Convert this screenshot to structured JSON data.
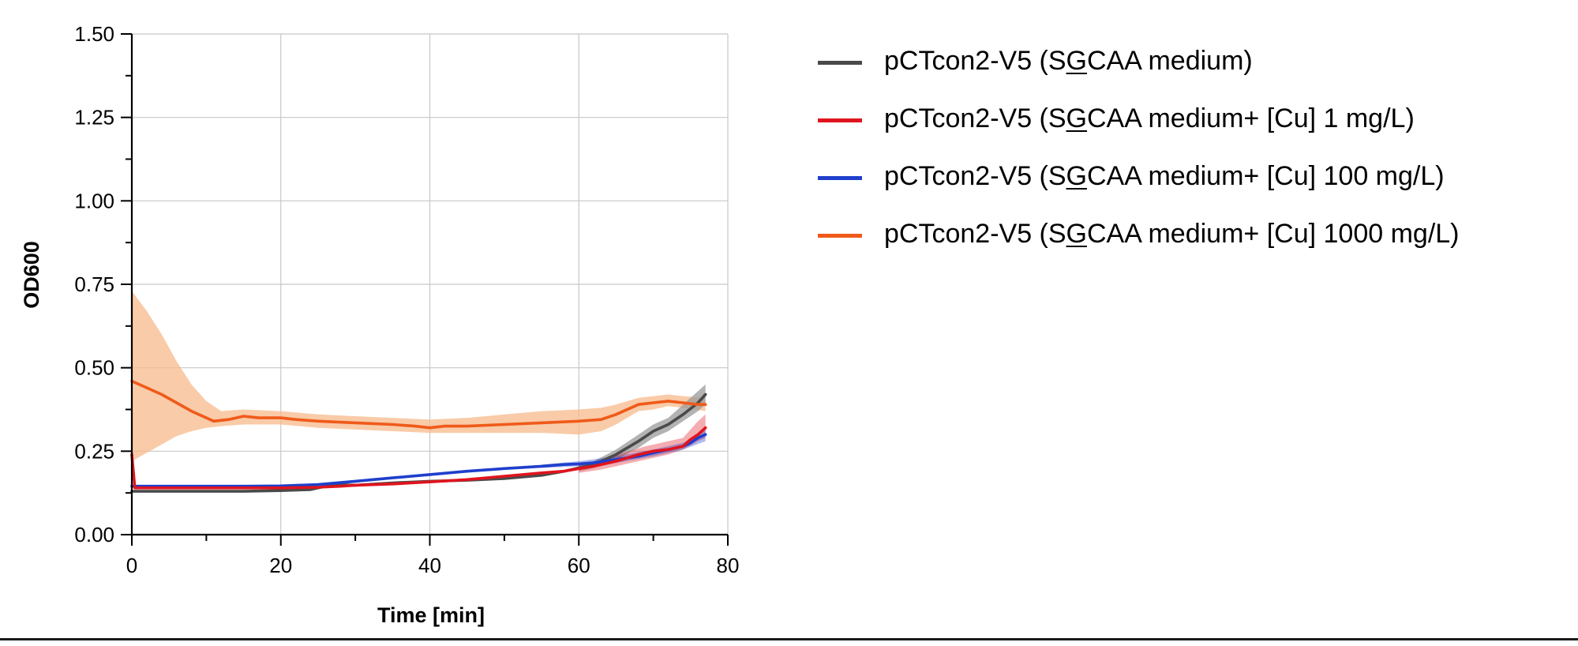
{
  "chart_data": {
    "type": "line",
    "xlabel": "Time [min]",
    "ylabel": "OD600",
    "xlim": [
      0,
      80
    ],
    "ylim": [
      0,
      1.5
    ],
    "xticks": [
      "0",
      "20",
      "40",
      "60",
      "80"
    ],
    "yticks": [
      "0.00",
      "0.25",
      "0.50",
      "0.75",
      "1.00",
      "1.25",
      "1.50"
    ],
    "grid": true,
    "legend_position": "right",
    "series": [
      {
        "name": "pCTcon2-V5 (SGCAA medium)",
        "name_parts": [
          "pCTcon2-V5 (S",
          "G",
          "CAA medium)"
        ],
        "color": "#4a4a4a",
        "band_color": "#9a9a9a",
        "points": [
          [
            0,
            0.13
          ],
          [
            5,
            0.13
          ],
          [
            10,
            0.13
          ],
          [
            15,
            0.13
          ],
          [
            20,
            0.132
          ],
          [
            24,
            0.135
          ],
          [
            27,
            0.15
          ],
          [
            30,
            0.148
          ],
          [
            35,
            0.155
          ],
          [
            40,
            0.16
          ],
          [
            45,
            0.163
          ],
          [
            50,
            0.168
          ],
          [
            55,
            0.178
          ],
          [
            58,
            0.19
          ],
          [
            60,
            0.2
          ],
          [
            62,
            0.21
          ],
          [
            65,
            0.24
          ],
          [
            68,
            0.28
          ],
          [
            70,
            0.31
          ],
          [
            72,
            0.33
          ],
          [
            74,
            0.36
          ],
          [
            76,
            0.395
          ],
          [
            77,
            0.42
          ]
        ],
        "band": [
          [
            60,
            0.19,
            0.21
          ],
          [
            62,
            0.2,
            0.22
          ],
          [
            65,
            0.225,
            0.255
          ],
          [
            68,
            0.26,
            0.3
          ],
          [
            70,
            0.29,
            0.33
          ],
          [
            72,
            0.31,
            0.35
          ],
          [
            74,
            0.34,
            0.39
          ],
          [
            76,
            0.37,
            0.43
          ],
          [
            77,
            0.39,
            0.45
          ]
        ]
      },
      {
        "name": "pCTcon2-V5 (SGCAA medium+ [Cu] 1 mg/L)",
        "name_parts": [
          "pCTcon2-V5 (S",
          "G",
          "CAA medium+ [Cu] 1 mg/L)"
        ],
        "color": "#e0141e",
        "points": [
          [
            0,
            0.24
          ],
          [
            0.4,
            0.14
          ],
          [
            1,
            0.14
          ],
          [
            5,
            0.14
          ],
          [
            10,
            0.14
          ],
          [
            15,
            0.14
          ],
          [
            20,
            0.14
          ],
          [
            25,
            0.142
          ],
          [
            28,
            0.145
          ],
          [
            30,
            0.148
          ],
          [
            35,
            0.152
          ],
          [
            40,
            0.158
          ],
          [
            45,
            0.165
          ],
          [
            50,
            0.175
          ],
          [
            55,
            0.185
          ],
          [
            58,
            0.19
          ],
          [
            60,
            0.198
          ],
          [
            62,
            0.205
          ],
          [
            65,
            0.22
          ],
          [
            68,
            0.24
          ],
          [
            70,
            0.25
          ],
          [
            72,
            0.255
          ],
          [
            74,
            0.265
          ],
          [
            75,
            0.285
          ],
          [
            76,
            0.3
          ],
          [
            77,
            0.32
          ]
        ],
        "band": [
          [
            60,
            0.185,
            0.21
          ],
          [
            63,
            0.195,
            0.225
          ],
          [
            66,
            0.21,
            0.245
          ],
          [
            69,
            0.225,
            0.265
          ],
          [
            72,
            0.24,
            0.28
          ],
          [
            74,
            0.255,
            0.29
          ],
          [
            76,
            0.28,
            0.34
          ],
          [
            77,
            0.29,
            0.36
          ]
        ]
      },
      {
        "name": "pCTcon2-V5 (SGCAA medium+ [Cu] 100 mg/L)",
        "name_parts": [
          "pCTcon2-V5 (S",
          "G",
          "CAA medium+ [Cu] 100 mg/L)"
        ],
        "color": "#1f3fcc",
        "points": [
          [
            0,
            0.145
          ],
          [
            5,
            0.145
          ],
          [
            10,
            0.145
          ],
          [
            15,
            0.145
          ],
          [
            20,
            0.146
          ],
          [
            25,
            0.15
          ],
          [
            30,
            0.16
          ],
          [
            35,
            0.17
          ],
          [
            40,
            0.18
          ],
          [
            45,
            0.19
          ],
          [
            50,
            0.198
          ],
          [
            55,
            0.205
          ],
          [
            58,
            0.21
          ],
          [
            60,
            0.212
          ],
          [
            62,
            0.215
          ],
          [
            65,
            0.225
          ],
          [
            68,
            0.235
          ],
          [
            70,
            0.245
          ],
          [
            72,
            0.255
          ],
          [
            74,
            0.265
          ],
          [
            75,
            0.275
          ],
          [
            76,
            0.29
          ],
          [
            77,
            0.3
          ]
        ],
        "band": [
          [
            55,
            0.2,
            0.21
          ],
          [
            60,
            0.205,
            0.22
          ],
          [
            65,
            0.215,
            0.235
          ],
          [
            70,
            0.235,
            0.255
          ],
          [
            74,
            0.255,
            0.275
          ],
          [
            77,
            0.28,
            0.315
          ]
        ]
      },
      {
        "name": "pCTcon2-V5 (SGCAA medium+ [Cu] 1000 mg/L)",
        "name_parts": [
          "pCTcon2-V5 (S",
          "G",
          "CAA medium+ [Cu] 1000 mg/L)"
        ],
        "color": "#f05a1a",
        "band_color": "#f7b98b",
        "points": [
          [
            0,
            0.46
          ],
          [
            2,
            0.44
          ],
          [
            4,
            0.42
          ],
          [
            6,
            0.395
          ],
          [
            8,
            0.37
          ],
          [
            10,
            0.35
          ],
          [
            11,
            0.34
          ],
          [
            13,
            0.345
          ],
          [
            15,
            0.355
          ],
          [
            17,
            0.35
          ],
          [
            20,
            0.35
          ],
          [
            22,
            0.345
          ],
          [
            25,
            0.34
          ],
          [
            30,
            0.335
          ],
          [
            35,
            0.33
          ],
          [
            38,
            0.325
          ],
          [
            40,
            0.32
          ],
          [
            42,
            0.325
          ],
          [
            45,
            0.325
          ],
          [
            50,
            0.33
          ],
          [
            55,
            0.335
          ],
          [
            60,
            0.34
          ],
          [
            63,
            0.345
          ],
          [
            65,
            0.36
          ],
          [
            68,
            0.39
          ],
          [
            70,
            0.395
          ],
          [
            72,
            0.4
          ],
          [
            74,
            0.395
          ],
          [
            76,
            0.39
          ],
          [
            77,
            0.39
          ]
        ],
        "band": [
          [
            0,
            0.22,
            0.73
          ],
          [
            2,
            0.245,
            0.67
          ],
          [
            4,
            0.27,
            0.6
          ],
          [
            6,
            0.295,
            0.52
          ],
          [
            8,
            0.31,
            0.45
          ],
          [
            10,
            0.32,
            0.4
          ],
          [
            12,
            0.325,
            0.37
          ],
          [
            15,
            0.33,
            0.375
          ],
          [
            20,
            0.33,
            0.37
          ],
          [
            25,
            0.32,
            0.36
          ],
          [
            30,
            0.315,
            0.355
          ],
          [
            35,
            0.31,
            0.35
          ],
          [
            40,
            0.305,
            0.345
          ],
          [
            45,
            0.305,
            0.35
          ],
          [
            50,
            0.305,
            0.36
          ],
          [
            55,
            0.305,
            0.37
          ],
          [
            60,
            0.3,
            0.375
          ],
          [
            63,
            0.31,
            0.38
          ],
          [
            65,
            0.33,
            0.39
          ],
          [
            68,
            0.37,
            0.41
          ],
          [
            70,
            0.375,
            0.415
          ],
          [
            72,
            0.385,
            0.42
          ],
          [
            74,
            0.38,
            0.415
          ],
          [
            77,
            0.37,
            0.41
          ]
        ]
      }
    ]
  }
}
